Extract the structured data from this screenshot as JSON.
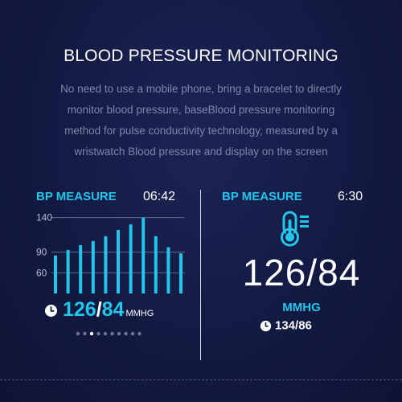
{
  "header": {
    "title": "BLOOD PRESSURE MONITORING",
    "description_lines": [
      "No need to use a mobile phone, bring a bracelet to directly",
      "monitor blood pressure, baseBlood pressure monitoring",
      "method for pulse conductivity technology, measured by a",
      "wristwatch Blood pressure and display on the screen"
    ]
  },
  "left_screen": {
    "label": "BP MEASURE",
    "time": "06:42",
    "systolic": "126",
    "slash": "/",
    "diastolic": "84",
    "unit": "MMHG",
    "page_dots": 10,
    "active_dot": 3
  },
  "right_screen": {
    "label": "BP MEASURE",
    "time": "6:30",
    "reading": "126/84",
    "unit": "MMHG",
    "previous_reading": "134/86"
  },
  "colors": {
    "accent": "#22c6ea",
    "background": "#131a42",
    "text": "#ffffff"
  },
  "chart_data": {
    "type": "bar",
    "categories": [
      "1",
      "2",
      "3",
      "4",
      "5",
      "6",
      "7",
      "8",
      "9",
      "10",
      "11"
    ],
    "values": [
      85,
      93,
      100,
      106,
      113,
      122,
      130,
      140,
      113,
      97,
      88
    ],
    "ytick_labels": [
      "140",
      "90",
      "60"
    ],
    "yticks": [
      140,
      90,
      60
    ],
    "ylim": [
      30,
      150
    ],
    "grid": true,
    "title": "",
    "xlabel": "",
    "ylabel": ""
  }
}
